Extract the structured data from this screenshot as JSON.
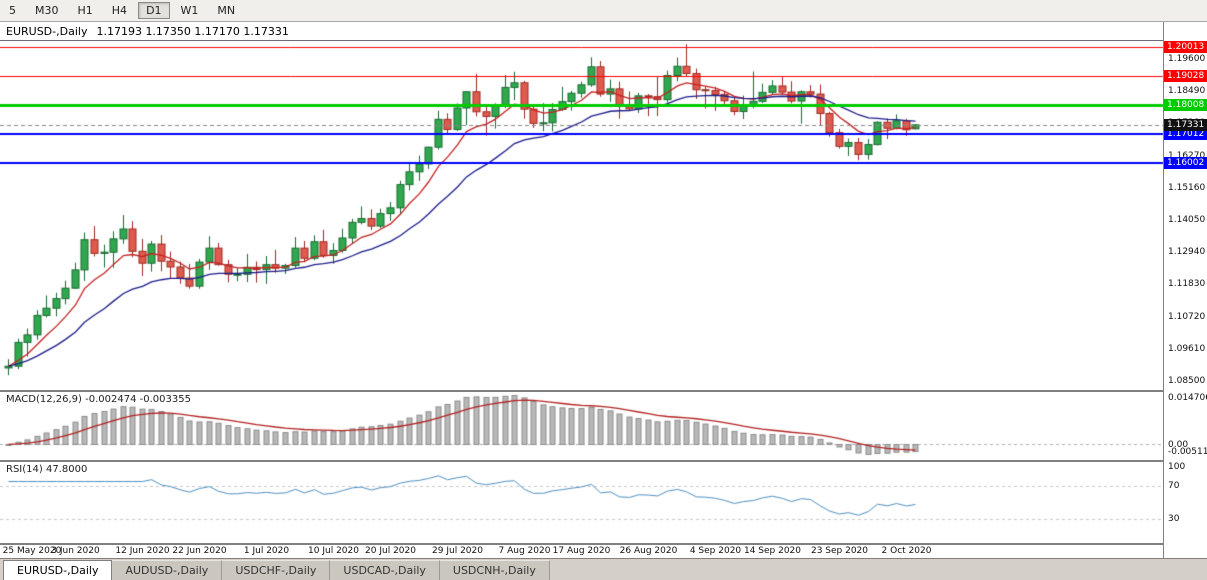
{
  "toolbar": {
    "periods": [
      {
        "label": "5",
        "active": false
      },
      {
        "label": "M30",
        "active": false
      },
      {
        "label": "H1",
        "active": false
      },
      {
        "label": "H4",
        "active": false
      },
      {
        "label": "D1",
        "active": true
      },
      {
        "label": "W1",
        "active": false
      },
      {
        "label": "MN",
        "active": false
      }
    ]
  },
  "chart_data": {
    "type": "candlestick",
    "symbol_title": "EURUSD-,Daily",
    "ohlc_label": "1.17193 1.17350 1.17170 1.17331",
    "y_range": [
      1.0819,
      1.2022
    ],
    "price_axis_ticks": [
      "1.19600",
      "1.18490",
      "1.17380",
      "1.16270",
      "1.15160",
      "1.14050",
      "1.12940",
      "1.11830",
      "1.10720",
      "1.09610",
      "1.08500"
    ],
    "colors": {
      "up_fill": "#2FA84F",
      "up_border": "#1A6B33",
      "down_fill": "#DE5B4E",
      "down_border": "#9E2B22",
      "current_line": "#888888"
    },
    "moving_averages": [
      {
        "name": "ma-fast",
        "color": "#C32222",
        "period": 7
      },
      {
        "name": "ma-slow",
        "color": "#1C1C8C",
        "period": 18
      }
    ],
    "h_lines": [
      {
        "price": 1.20013,
        "label": "1.20013",
        "color": "#FF0000",
        "thickness": 1
      },
      {
        "price": 1.19028,
        "label": "1.19028",
        "color": "#FF0000",
        "thickness": 1
      },
      {
        "price": 1.18008,
        "label": "1.18008",
        "color": "#00CC00",
        "thickness": 3
      },
      {
        "price": 1.17012,
        "label": "1.17012",
        "color": "#0000FF",
        "thickness": 2
      },
      {
        "price": 1.16002,
        "label": "1.16002",
        "color": "#0000FF",
        "thickness": 2
      }
    ],
    "current_price": {
      "value": 1.17331,
      "label": "1.17331",
      "badge_bg": "#111111"
    },
    "indicators": {
      "macd": {
        "title": "MACD(12,26,9) -0.002474 -0.003355",
        "fast": 12,
        "slow": 26,
        "signal": 9,
        "axis_labels": [
          "0.014706",
          "0.00",
          "-0.005113"
        ],
        "histogram_color": "#B8B8B8",
        "histogram_border": "#8C8C8C",
        "signal_color": "#B22222"
      },
      "rsi": {
        "title": "RSI(14) 47.8000",
        "period": 14,
        "levels": [
          70,
          30
        ],
        "axis_labels": [
          "100",
          "70",
          "30"
        ],
        "line_color": "#4E8FC0"
      }
    },
    "x_ticks": [
      {
        "i": 0,
        "label": "25 May 2020"
      },
      {
        "i": 7,
        "label": "3 Jun 2020"
      },
      {
        "i": 14,
        "label": "12 Jun 2020"
      },
      {
        "i": 20,
        "label": "22 Jun 2020"
      },
      {
        "i": 27,
        "label": "1 Jul 2020"
      },
      {
        "i": 34,
        "label": "10 Jul 2020"
      },
      {
        "i": 40,
        "label": "20 Jul 2020"
      },
      {
        "i": 47,
        "label": "29 Jul 2020"
      },
      {
        "i": 54,
        "label": "7 Aug 2020"
      },
      {
        "i": 60,
        "label": "17 Aug 2020"
      },
      {
        "i": 67,
        "label": "26 Aug 2020"
      },
      {
        "i": 74,
        "label": "4 Sep 2020"
      },
      {
        "i": 80,
        "label": "14 Sep 2020"
      },
      {
        "i": 87,
        "label": "23 Sep 2020"
      },
      {
        "i": 94,
        "label": "2 Oct 2020"
      }
    ],
    "candles": [
      [
        1.0895,
        1.0925,
        1.087,
        1.0901
      ],
      [
        1.0901,
        1.0996,
        1.0891,
        1.0983
      ],
      [
        1.0983,
        1.1031,
        1.0934,
        1.1009
      ],
      [
        1.1009,
        1.1094,
        1.0992,
        1.1076
      ],
      [
        1.1076,
        1.1145,
        1.1069,
        1.1101
      ],
      [
        1.1101,
        1.1154,
        1.1073,
        1.1134
      ],
      [
        1.1134,
        1.1196,
        1.1114,
        1.117
      ],
      [
        1.117,
        1.1258,
        1.1167,
        1.1233
      ],
      [
        1.1233,
        1.1362,
        1.1195,
        1.1337
      ],
      [
        1.1337,
        1.1384,
        1.1279,
        1.129
      ],
      [
        1.129,
        1.132,
        1.1241,
        1.1294
      ],
      [
        1.1294,
        1.1366,
        1.124,
        1.134
      ],
      [
        1.134,
        1.1422,
        1.1323,
        1.1374
      ],
      [
        1.1374,
        1.1401,
        1.1277,
        1.1297
      ],
      [
        1.1297,
        1.134,
        1.1212,
        1.1256
      ],
      [
        1.1256,
        1.1333,
        1.1227,
        1.1322
      ],
      [
        1.1322,
        1.1353,
        1.1228,
        1.1263
      ],
      [
        1.1263,
        1.1296,
        1.1204,
        1.1243
      ],
      [
        1.1243,
        1.1262,
        1.1185,
        1.1205
      ],
      [
        1.1205,
        1.1254,
        1.1168,
        1.1177
      ],
      [
        1.1177,
        1.1271,
        1.1168,
        1.126
      ],
      [
        1.126,
        1.1349,
        1.1233,
        1.1308
      ],
      [
        1.1308,
        1.1326,
        1.1248,
        1.1251
      ],
      [
        1.1251,
        1.1268,
        1.119,
        1.1218
      ],
      [
        1.1218,
        1.1239,
        1.1194,
        1.1218
      ],
      [
        1.1218,
        1.1288,
        1.1191,
        1.1242
      ],
      [
        1.1242,
        1.1262,
        1.1189,
        1.1234
      ],
      [
        1.1234,
        1.1281,
        1.1185,
        1.1251
      ],
      [
        1.1251,
        1.1302,
        1.1223,
        1.1239
      ],
      [
        1.1239,
        1.1254,
        1.1219,
        1.1248
      ],
      [
        1.1248,
        1.1346,
        1.1241,
        1.1308
      ],
      [
        1.1308,
        1.1333,
        1.1259,
        1.1273
      ],
      [
        1.1273,
        1.1352,
        1.1266,
        1.133
      ],
      [
        1.133,
        1.1371,
        1.1275,
        1.1283
      ],
      [
        1.1283,
        1.1325,
        1.1254,
        1.13
      ],
      [
        1.13,
        1.1375,
        1.1292,
        1.1343
      ],
      [
        1.1343,
        1.1409,
        1.1325,
        1.1397
      ],
      [
        1.1397,
        1.1452,
        1.139,
        1.141
      ],
      [
        1.141,
        1.1442,
        1.137,
        1.1384
      ],
      [
        1.1384,
        1.1444,
        1.1377,
        1.1427
      ],
      [
        1.1427,
        1.1467,
        1.1402,
        1.1447
      ],
      [
        1.1447,
        1.154,
        1.1422,
        1.1527
      ],
      [
        1.1527,
        1.1601,
        1.1507,
        1.1571
      ],
      [
        1.1571,
        1.1627,
        1.154,
        1.1598
      ],
      [
        1.1598,
        1.1658,
        1.1581,
        1.1656
      ],
      [
        1.1656,
        1.1782,
        1.1648,
        1.1752
      ],
      [
        1.1752,
        1.1773,
        1.17,
        1.1717
      ],
      [
        1.1717,
        1.1807,
        1.1712,
        1.1791
      ],
      [
        1.1791,
        1.1849,
        1.1732,
        1.1847
      ],
      [
        1.1847,
        1.1909,
        1.1762,
        1.1778
      ],
      [
        1.1778,
        1.1797,
        1.1696,
        1.1762
      ],
      [
        1.1762,
        1.1807,
        1.172,
        1.1803
      ],
      [
        1.1803,
        1.1905,
        1.1791,
        1.1862
      ],
      [
        1.1862,
        1.1916,
        1.1818,
        1.1878
      ],
      [
        1.1878,
        1.1885,
        1.1754,
        1.1787
      ],
      [
        1.1787,
        1.1804,
        1.1722,
        1.1738
      ],
      [
        1.1738,
        1.1808,
        1.1711,
        1.174
      ],
      [
        1.174,
        1.1808,
        1.171,
        1.1786
      ],
      [
        1.1786,
        1.1864,
        1.1781,
        1.1813
      ],
      [
        1.1813,
        1.185,
        1.1782,
        1.1842
      ],
      [
        1.1842,
        1.1882,
        1.1826,
        1.1871
      ],
      [
        1.1871,
        1.1966,
        1.1864,
        1.1933
      ],
      [
        1.1933,
        1.1953,
        1.183,
        1.1839
      ],
      [
        1.1839,
        1.1889,
        1.1812,
        1.1857
      ],
      [
        1.1857,
        1.1882,
        1.1754,
        1.1796
      ],
      [
        1.1796,
        1.1848,
        1.1783,
        1.1788
      ],
      [
        1.1788,
        1.1843,
        1.1774,
        1.1833
      ],
      [
        1.1833,
        1.1839,
        1.1763,
        1.183
      ],
      [
        1.183,
        1.19,
        1.1763,
        1.182
      ],
      [
        1.182,
        1.192,
        1.181,
        1.1903
      ],
      [
        1.1903,
        1.1965,
        1.1883,
        1.1935
      ],
      [
        1.1935,
        1.2011,
        1.1898,
        1.191
      ],
      [
        1.191,
        1.1927,
        1.1822,
        1.1854
      ],
      [
        1.1854,
        1.1865,
        1.1789,
        1.1851
      ],
      [
        1.1851,
        1.1864,
        1.1781,
        1.1838
      ],
      [
        1.1838,
        1.1849,
        1.1804,
        1.1816
      ],
      [
        1.1816,
        1.1827,
        1.1766,
        1.1779
      ],
      [
        1.1779,
        1.1834,
        1.1753,
        1.1802
      ],
      [
        1.1802,
        1.1917,
        1.179,
        1.1814
      ],
      [
        1.1814,
        1.1875,
        1.1808,
        1.1845
      ],
      [
        1.1845,
        1.1887,
        1.1839,
        1.1867
      ],
      [
        1.1867,
        1.19,
        1.1837,
        1.1846
      ],
      [
        1.1846,
        1.1883,
        1.1807,
        1.1815
      ],
      [
        1.1815,
        1.1852,
        1.1737,
        1.1847
      ],
      [
        1.1847,
        1.187,
        1.1827,
        1.1839
      ],
      [
        1.1839,
        1.1872,
        1.1732,
        1.1772
      ],
      [
        1.1772,
        1.1778,
        1.1692,
        1.1706
      ],
      [
        1.1706,
        1.1719,
        1.1651,
        1.1659
      ],
      [
        1.1659,
        1.1686,
        1.1626,
        1.1672
      ],
      [
        1.1672,
        1.1688,
        1.1611,
        1.1631
      ],
      [
        1.1631,
        1.1684,
        1.1613,
        1.1665
      ],
      [
        1.1665,
        1.1745,
        1.1662,
        1.1742
      ],
      [
        1.1742,
        1.1755,
        1.1684,
        1.1721
      ],
      [
        1.1721,
        1.1769,
        1.1717,
        1.1747
      ],
      [
        1.1747,
        1.1754,
        1.1695,
        1.1716
      ],
      [
        1.17193,
        1.1735,
        1.1717,
        1.17331
      ]
    ]
  },
  "tabs": [
    {
      "label": "EURUSD-,Daily",
      "active": true
    },
    {
      "label": "AUDUSD-,Daily",
      "active": false
    },
    {
      "label": "USDCHF-,Daily",
      "active": false
    },
    {
      "label": "USDCAD-,Daily",
      "active": false
    },
    {
      "label": "USDCNH-,Daily",
      "active": false
    }
  ]
}
